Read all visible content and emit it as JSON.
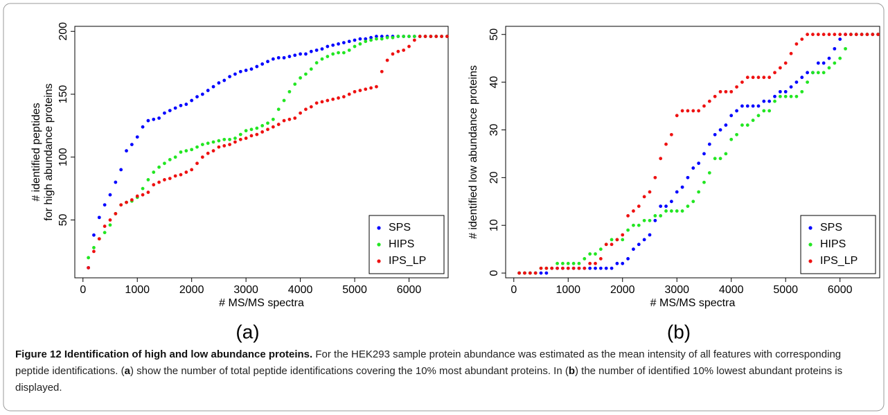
{
  "chart_data": [
    {
      "type": "scatter",
      "panel": "(a)",
      "xlabel": "# MS/MS spectra",
      "ylabel": [
        "# identified peptides",
        "for high abundance proteins"
      ],
      "xlim": [
        -150,
        6720
      ],
      "ylim": [
        4,
        204
      ],
      "xticks": [
        0,
        1000,
        2000,
        3000,
        4000,
        5000,
        6000
      ],
      "yticks": [
        50,
        100,
        150,
        200
      ],
      "legend": "bottom-right",
      "x": [
        100,
        200,
        300,
        400,
        500,
        600,
        700,
        800,
        900,
        1000,
        1100,
        1200,
        1300,
        1400,
        1500,
        1600,
        1700,
        1800,
        1900,
        2000,
        2100,
        2200,
        2300,
        2400,
        2500,
        2600,
        2700,
        2800,
        2900,
        3000,
        3100,
        3200,
        3300,
        3400,
        3500,
        3600,
        3700,
        3800,
        3900,
        4000,
        4100,
        4200,
        4300,
        4400,
        4500,
        4600,
        4700,
        4800,
        4900,
        5000,
        5100,
        5200,
        5300,
        5400,
        5500,
        5600,
        5700,
        5800,
        5900,
        6000,
        6100,
        6200,
        6300,
        6400,
        6500,
        6600,
        6700
      ],
      "series": [
        {
          "name": "SPS",
          "color": "#0000ff",
          "values": [
            12,
            38,
            52,
            62,
            70,
            80,
            90,
            105,
            110,
            116,
            124,
            129,
            130,
            131,
            135,
            137,
            139,
            141,
            142,
            145,
            148,
            150,
            153,
            156,
            159,
            161,
            164,
            166,
            168,
            169,
            170,
            172,
            174,
            176,
            178,
            179,
            179,
            180,
            181,
            182,
            182,
            184,
            185,
            186,
            188,
            189,
            190,
            191,
            192,
            193,
            194,
            194,
            195,
            196,
            196,
            196,
            196,
            196,
            196,
            196,
            196,
            196,
            196,
            196,
            196,
            196,
            196
          ]
        },
        {
          "name": "HIPS",
          "color": "#22e622",
          "values": [
            20,
            28,
            35,
            40,
            46,
            55,
            62,
            64,
            65,
            68,
            75,
            82,
            88,
            92,
            95,
            98,
            100,
            104,
            105,
            106,
            108,
            110,
            111,
            112,
            113,
            114,
            114,
            115,
            118,
            121,
            122,
            123,
            125,
            127,
            130,
            138,
            145,
            152,
            158,
            163,
            166,
            170,
            175,
            178,
            180,
            182,
            183,
            183,
            185,
            188,
            190,
            192,
            193,
            194,
            194,
            195,
            195,
            196,
            196,
            196,
            196,
            196,
            196,
            196,
            196,
            196,
            196
          ]
        },
        {
          "name": "IPS_LP",
          "color": "#ee1111",
          "values": [
            12,
            25,
            35,
            45,
            50,
            55,
            62,
            64,
            66,
            69,
            70,
            72,
            78,
            80,
            82,
            83,
            85,
            86,
            88,
            90,
            95,
            100,
            103,
            105,
            108,
            109,
            110,
            112,
            114,
            115,
            117,
            118,
            120,
            122,
            124,
            126,
            129,
            130,
            131,
            135,
            138,
            140,
            143,
            144,
            145,
            146,
            147,
            148,
            150,
            152,
            153,
            154,
            155,
            156,
            168,
            177,
            182,
            184,
            185,
            188,
            193,
            196,
            196,
            196,
            196,
            196,
            196
          ]
        }
      ]
    },
    {
      "type": "scatter",
      "panel": "(b)",
      "xlabel": "# MS/MS spectra",
      "ylabel": [
        "# identified low abundance proteins"
      ],
      "xlim": [
        -150,
        6730
      ],
      "ylim": [
        -1,
        51.7
      ],
      "xticks": [
        0,
        1000,
        2000,
        3000,
        4000,
        5000,
        6000
      ],
      "yticks": [
        0,
        10,
        20,
        30,
        40,
        50
      ],
      "legend": "bottom-right",
      "x": [
        100,
        200,
        300,
        400,
        500,
        600,
        700,
        800,
        900,
        1000,
        1100,
        1200,
        1300,
        1400,
        1500,
        1600,
        1700,
        1800,
        1900,
        2000,
        2100,
        2200,
        2300,
        2400,
        2500,
        2600,
        2700,
        2800,
        2900,
        3000,
        3100,
        3200,
        3300,
        3400,
        3500,
        3600,
        3700,
        3800,
        3900,
        4000,
        4100,
        4200,
        4300,
        4400,
        4500,
        4600,
        4700,
        4800,
        4900,
        5000,
        5100,
        5200,
        5300,
        5400,
        5500,
        5600,
        5700,
        5800,
        5900,
        6000,
        6100,
        6200,
        6300,
        6400,
        6500,
        6600,
        6700
      ],
      "series": [
        {
          "name": "SPS",
          "color": "#0000ff",
          "values": [
            0,
            0,
            0,
            0,
            0,
            0,
            1,
            1,
            1,
            1,
            1,
            1,
            1,
            1,
            1,
            1,
            1,
            1,
            2,
            2,
            3,
            5,
            6,
            7,
            8,
            11,
            14,
            14,
            15,
            17,
            18,
            20,
            22,
            23,
            25,
            27,
            29,
            30,
            31,
            33,
            34,
            35,
            35,
            35,
            35,
            36,
            36,
            37,
            38,
            38,
            39,
            40,
            41,
            42,
            42,
            44,
            44,
            45,
            47,
            49,
            50,
            50,
            50,
            50,
            50,
            50,
            50
          ]
        },
        {
          "name": "HIPS",
          "color": "#22e622",
          "values": [
            0,
            0,
            0,
            0,
            1,
            1,
            1,
            2,
            2,
            2,
            2,
            2,
            3,
            4,
            4,
            5,
            6,
            7,
            7,
            7,
            9,
            10,
            10,
            11,
            11,
            12,
            12,
            13,
            13,
            13,
            13,
            14,
            15,
            17,
            19,
            21,
            24,
            24,
            25,
            28,
            29,
            31,
            31,
            32,
            33,
            34,
            34,
            36,
            37,
            37,
            37,
            37,
            38,
            40,
            42,
            42,
            42,
            43,
            44,
            45,
            47,
            50,
            50,
            50,
            50,
            50,
            50
          ]
        },
        {
          "name": "IPS_LP",
          "color": "#ee1111",
          "values": [
            0,
            0,
            0,
            0,
            1,
            1,
            1,
            1,
            1,
            1,
            1,
            1,
            1,
            2,
            2,
            3,
            6,
            6,
            7,
            8,
            12,
            13,
            14,
            16,
            17,
            20,
            24,
            27,
            29,
            33,
            34,
            34,
            34,
            34,
            35,
            36,
            37,
            38,
            38,
            38,
            39,
            40,
            41,
            41,
            41,
            41,
            41,
            42,
            43,
            44,
            46,
            48,
            49,
            50,
            50,
            50,
            50,
            50,
            50,
            50,
            50,
            50,
            50,
            50,
            50,
            50,
            50
          ]
        }
      ]
    }
  ],
  "caption": {
    "label": "Figure 12",
    "title": "Identification of high and low abundance proteins.",
    "text1": "For the HEK293 sample protein abundance was estimated as the mean intensity of all features with corresponding peptide identifications. (",
    "ref_a": "a",
    "text2": ") show the number of total peptide identifications covering the 10% most abundant proteins. In (",
    "ref_b": "b",
    "text3": ") the number of identified 10% lowest abundant proteins is displayed."
  }
}
